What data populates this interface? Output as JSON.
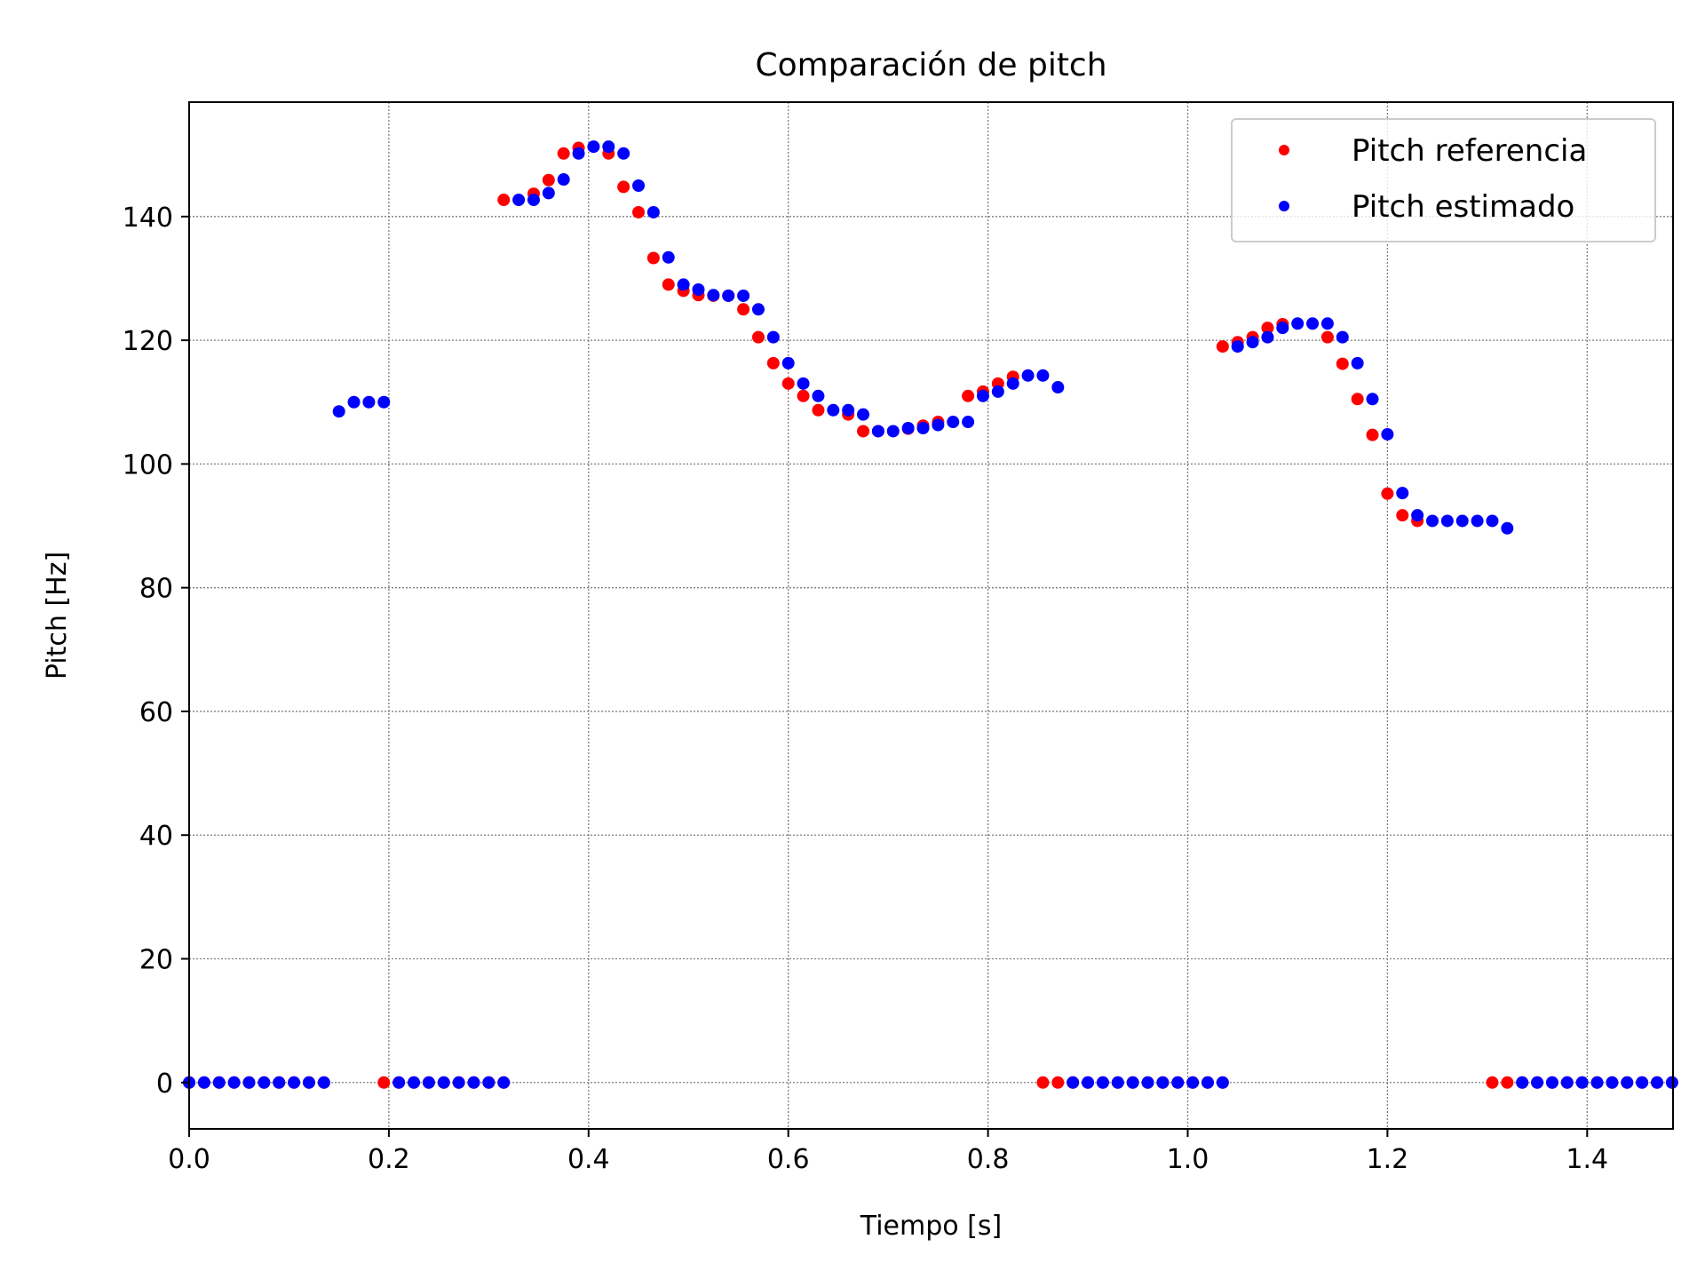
{
  "colors": {
    "reference": "#ff0000",
    "estimated": "#0000ff",
    "grid": "#7f7f7f",
    "legend_border": "#cccccc"
  },
  "chart_data": {
    "type": "scatter",
    "title": "Comparación de pitch",
    "xlabel": "Tiempo [s]",
    "ylabel": "Pitch [Hz]",
    "xlim": [
      0,
      1.486
    ],
    "ylim": [
      -7.5,
      158.5
    ],
    "xticks": [
      0.0,
      0.2,
      0.4,
      0.6,
      0.8,
      1.0,
      1.2,
      1.4
    ],
    "xtick_labels": [
      "0.0",
      "0.2",
      "0.4",
      "0.6",
      "0.8",
      "1.0",
      "1.2",
      "1.4"
    ],
    "yticks": [
      0,
      20,
      40,
      60,
      80,
      100,
      120,
      140
    ],
    "ytick_labels": [
      "0",
      "20",
      "40",
      "60",
      "80",
      "100",
      "120",
      "140"
    ],
    "grid": true,
    "legend_position": "upper right",
    "series": [
      {
        "name": "Pitch referencia",
        "color": "#ff0000",
        "x": [
          0.0,
          0.015,
          0.03,
          0.045,
          0.06,
          0.075,
          0.09,
          0.105,
          0.12,
          0.135,
          0.195,
          0.21,
          0.225,
          0.24,
          0.255,
          0.27,
          0.285,
          0.3,
          0.315,
          0.315,
          0.345,
          0.36,
          0.375,
          0.39,
          0.42,
          0.435,
          0.45,
          0.465,
          0.48,
          0.495,
          0.51,
          0.525,
          0.54,
          0.555,
          0.57,
          0.585,
          0.6,
          0.615,
          0.63,
          0.66,
          0.675,
          0.69,
          0.72,
          0.735,
          0.75,
          0.78,
          0.795,
          0.81,
          0.825,
          0.855,
          0.87,
          0.885,
          0.9,
          0.915,
          0.93,
          0.945,
          0.96,
          0.975,
          0.99,
          1.005,
          1.02,
          1.035,
          1.035,
          1.05,
          1.065,
          1.08,
          1.095,
          1.14,
          1.155,
          1.17,
          1.185,
          1.2,
          1.215,
          1.23,
          1.305,
          1.32,
          1.335,
          1.35,
          1.365,
          1.38,
          1.395,
          1.41,
          1.425,
          1.44,
          1.455,
          1.47,
          1.485
        ],
        "y": [
          0,
          0,
          0,
          0,
          0,
          0,
          0,
          0,
          0,
          0,
          0,
          0,
          0,
          0,
          0,
          0,
          0,
          0,
          0,
          142.7,
          143.7,
          145.9,
          150.2,
          151.1,
          150.2,
          144.8,
          140.7,
          133.3,
          129.0,
          128.0,
          127.3,
          127.2,
          127.2,
          125.0,
          120.5,
          116.3,
          113.0,
          111.0,
          108.7,
          108.0,
          105.3,
          105.3,
          105.7,
          106.2,
          106.8,
          111.0,
          111.7,
          113.0,
          114.1,
          0,
          0,
          0,
          0,
          0,
          0,
          0,
          0,
          0,
          0,
          0,
          0,
          0,
          119.0,
          119.7,
          120.5,
          122.0,
          122.6,
          120.5,
          116.2,
          110.5,
          104.7,
          95.2,
          91.7,
          90.8,
          0,
          0,
          0,
          0,
          0,
          0,
          0,
          0,
          0,
          0,
          0,
          0,
          0
        ]
      },
      {
        "name": "Pitch estimado",
        "color": "#0000ff",
        "x": [
          0.0,
          0.015,
          0.03,
          0.045,
          0.06,
          0.075,
          0.09,
          0.105,
          0.12,
          0.135,
          0.15,
          0.165,
          0.18,
          0.195,
          0.21,
          0.225,
          0.24,
          0.255,
          0.27,
          0.285,
          0.3,
          0.315,
          0.33,
          0.345,
          0.36,
          0.375,
          0.39,
          0.405,
          0.42,
          0.435,
          0.45,
          0.465,
          0.48,
          0.495,
          0.51,
          0.525,
          0.54,
          0.555,
          0.57,
          0.585,
          0.6,
          0.615,
          0.63,
          0.645,
          0.66,
          0.675,
          0.69,
          0.705,
          0.72,
          0.735,
          0.75,
          0.765,
          0.78,
          0.795,
          0.81,
          0.825,
          0.84,
          0.855,
          0.87,
          0.885,
          0.9,
          0.915,
          0.93,
          0.945,
          0.96,
          0.975,
          0.99,
          1.005,
          1.02,
          1.035,
          1.05,
          1.065,
          1.08,
          1.095,
          1.11,
          1.125,
          1.14,
          1.155,
          1.17,
          1.185,
          1.2,
          1.215,
          1.23,
          1.245,
          1.26,
          1.275,
          1.29,
          1.305,
          1.32,
          1.335,
          1.35,
          1.365,
          1.38,
          1.395,
          1.41,
          1.425,
          1.44,
          1.455,
          1.47,
          1.485
        ],
        "y": [
          0,
          0,
          0,
          0,
          0,
          0,
          0,
          0,
          0,
          0,
          108.5,
          110.0,
          110.0,
          110.0,
          0,
          0,
          0,
          0,
          0,
          0,
          0,
          0,
          142.7,
          142.7,
          143.8,
          146.0,
          150.2,
          151.3,
          151.3,
          150.2,
          145.0,
          140.7,
          133.4,
          129.0,
          128.2,
          127.3,
          127.2,
          127.2,
          125.0,
          120.5,
          116.3,
          113.0,
          111.0,
          108.7,
          108.7,
          108.0,
          105.3,
          105.3,
          105.8,
          105.8,
          106.3,
          106.8,
          106.8,
          111.0,
          111.7,
          113.0,
          114.3,
          114.3,
          112.4,
          0,
          0,
          0,
          0,
          0,
          0,
          0,
          0,
          0,
          0,
          0,
          119.0,
          119.7,
          120.5,
          122.0,
          122.7,
          122.7,
          122.7,
          120.5,
          116.3,
          110.5,
          104.8,
          95.3,
          91.7,
          90.8,
          90.8,
          90.8,
          90.8,
          90.8,
          89.6,
          0,
          0,
          0,
          0,
          0,
          0,
          0,
          0,
          0,
          0,
          0
        ]
      }
    ]
  }
}
